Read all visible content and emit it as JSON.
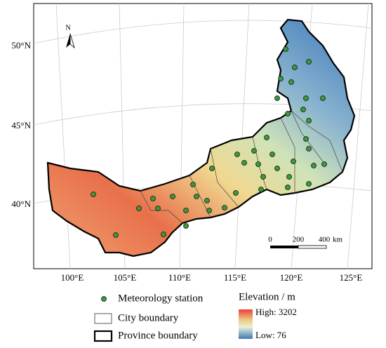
{
  "map": {
    "north_arrow": "N",
    "lat_labels": [
      "50°N",
      "45°N",
      "40°N"
    ],
    "lon_labels": [
      "100°E",
      "105°E",
      "110°E",
      "115°E",
      "120°E",
      "125°E"
    ],
    "scale_bar": {
      "ticks": [
        "0",
        "200",
        "400"
      ],
      "unit": "km"
    },
    "legend": {
      "items": [
        "Meteorology station",
        "City boundary",
        "Province boundary"
      ]
    },
    "elevation_legend": {
      "title": "Elevation / m",
      "high": "High: 3202",
      "low": "Low: 76"
    }
  }
}
